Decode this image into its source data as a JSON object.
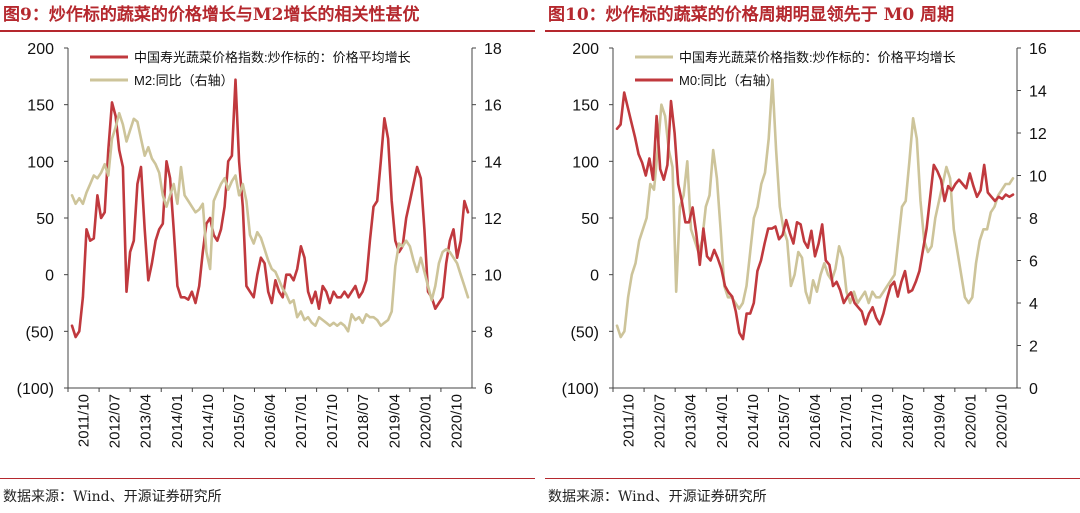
{
  "figures": [
    {
      "title": "图9：炒作标的蔬菜的价格增长与M2增长的相关性甚优",
      "source": "数据来源：Wind、开源证券研究所"
    },
    {
      "title": "图10：炒作标的蔬菜的价格周期明显领先于 M0 周期",
      "source": "数据来源：Wind、开源证券研究所"
    }
  ],
  "chart_data": [
    {
      "type": "line",
      "title": "图9：炒作标的蔬菜的价格增长与M2增长的相关性甚优",
      "x_tick_labels": [
        "2011/10",
        "2012/07",
        "2013/04",
        "2014/01",
        "2014/10",
        "2015/07",
        "2016/04",
        "2017/01",
        "2017/10",
        "2018/07",
        "2019/04",
        "2020/01",
        "2020/10"
      ],
      "y_left": {
        "ticks": [
          200,
          150,
          100,
          50,
          0,
          -50,
          -100
        ],
        "tick_labels": [
          "200",
          "150",
          "100",
          "50",
          "0",
          "(50)",
          "(100)"
        ],
        "ylim": [
          -100,
          200
        ]
      },
      "y_right": {
        "ticks": [
          18,
          16,
          14,
          12,
          10,
          8,
          6
        ],
        "tick_labels": [
          "18",
          "16",
          "14",
          "12",
          "10",
          "8",
          "6"
        ],
        "ylim": [
          6,
          18
        ]
      },
      "legend_position": "top",
      "series": [
        {
          "name": "中国寿光蔬菜价格指数:炒作标的：价格平均增长",
          "axis": "left",
          "color": "#c0393e",
          "values": [
            -45,
            -55,
            -50,
            -20,
            40,
            30,
            32,
            70,
            50,
            55,
            110,
            152,
            140,
            110,
            95,
            -15,
            20,
            30,
            80,
            95,
            40,
            -5,
            10,
            30,
            40,
            45,
            100,
            85,
            40,
            -10,
            -20,
            -20,
            -22,
            -15,
            -25,
            -10,
            20,
            45,
            50,
            35,
            30,
            40,
            60,
            100,
            105,
            172,
            100,
            60,
            -10,
            -15,
            -20,
            0,
            15,
            10,
            -15,
            -25,
            -5,
            -15,
            -20,
            0,
            0,
            -5,
            5,
            25,
            15,
            -15,
            -25,
            -15,
            -30,
            -10,
            -15,
            -25,
            -15,
            -20,
            -20,
            -15,
            -20,
            -15,
            -10,
            -20,
            -15,
            -5,
            30,
            60,
            65,
            100,
            138,
            120,
            65,
            30,
            20,
            25,
            50,
            65,
            80,
            95,
            85,
            40,
            -15,
            -20,
            -30,
            -25,
            -20,
            10,
            30,
            40,
            15,
            30,
            65,
            55
          ]
        },
        {
          "name": "M2:同比（右轴）",
          "axis": "right",
          "color": "#cdc49a",
          "values": [
            12.8,
            12.5,
            12.7,
            12.5,
            12.9,
            13.2,
            13.5,
            13.4,
            13.6,
            13.9,
            13.5,
            14.8,
            15.2,
            15.7,
            15.3,
            14.7,
            15.1,
            15.5,
            15.4,
            14.8,
            14.2,
            14.5,
            14.1,
            13.9,
            13.6,
            12.8,
            12.4,
            12.8,
            13.2,
            12.5,
            13.8,
            12.8,
            12.6,
            12.4,
            12.2,
            12.3,
            12.5,
            10.8,
            10.2,
            12.6,
            12.9,
            13.2,
            13.4,
            13.0,
            13.3,
            13.5,
            12.8,
            13.2,
            12.6,
            11.4,
            11.1,
            11.5,
            11.3,
            10.9,
            10.5,
            10.2,
            10.1,
            9.8,
            9.5,
            9.3,
            9.0,
            9.1,
            8.5,
            8.7,
            8.4,
            8.5,
            8.3,
            8.2,
            8.5,
            8.4,
            8.3,
            8.2,
            8.3,
            8.2,
            8.3,
            8.2,
            8.0,
            8.6,
            8.4,
            8.5,
            8.3,
            8.6,
            8.5,
            8.5,
            8.4,
            8.2,
            8.3,
            8.4,
            8.7,
            10.3,
            11.1,
            11.0,
            11.2,
            11.0,
            10.5,
            10.1,
            10.6,
            10.1,
            9.6,
            9.1,
            9.6,
            10.4,
            10.8,
            10.9,
            10.8,
            10.6,
            10.4,
            10.0,
            9.6,
            9.2
          ]
        }
      ]
    },
    {
      "type": "line",
      "title": "图10：炒作标的蔬菜的价格周期明显领先于 M0 周期",
      "x_tick_labels": [
        "2011/10",
        "2012/07",
        "2013/04",
        "2014/01",
        "2014/10",
        "2015/07",
        "2016/04",
        "2017/01",
        "2017/10",
        "2018/07",
        "2019/04",
        "2020/01",
        "2020/10"
      ],
      "y_left": {
        "ticks": [
          200,
          150,
          100,
          50,
          0,
          -50,
          -100
        ],
        "tick_labels": [
          "200",
          "150",
          "100",
          "50",
          "0",
          "(50)",
          "(100)"
        ],
        "ylim": [
          -100,
          200
        ]
      },
      "y_right": {
        "ticks": [
          16,
          14,
          12,
          10,
          8,
          6,
          4,
          2,
          0
        ],
        "tick_labels": [
          "16",
          "14",
          "12",
          "10",
          "8",
          "6",
          "4",
          "2",
          "0"
        ],
        "ylim": [
          0,
          16
        ]
      },
      "legend_position": "top",
      "series": [
        {
          "name": "中国寿光蔬菜价格指数:炒作标的：价格平均增长",
          "axis": "left",
          "color": "#cdc49a",
          "values": [
            -45,
            -55,
            -50,
            -20,
            0,
            10,
            30,
            40,
            50,
            80,
            75,
            110,
            150,
            140,
            110,
            95,
            -15,
            60,
            70,
            100,
            40,
            30,
            20,
            30,
            60,
            70,
            110,
            85,
            40,
            -10,
            -20,
            -20,
            -25,
            -30,
            -25,
            -10,
            20,
            50,
            60,
            80,
            90,
            120,
            172,
            110,
            60,
            40,
            30,
            -10,
            0,
            20,
            15,
            -15,
            -25,
            -5,
            -15,
            0,
            10,
            0,
            -5,
            5,
            25,
            15,
            -15,
            -25,
            -15,
            -25,
            -20,
            -15,
            -25,
            -15,
            -20,
            -20,
            -15,
            -10,
            -5,
            0,
            30,
            60,
            65,
            100,
            138,
            120,
            65,
            30,
            20,
            25,
            50,
            65,
            80,
            95,
            85,
            40,
            20,
            0,
            -20,
            -25,
            -20,
            10,
            30,
            40,
            40,
            55,
            60,
            70,
            75,
            80,
            80,
            85
          ]
        },
        {
          "name": "M0:同比（右轴）",
          "axis": "right",
          "color": "#c0393e",
          "values": [
            12.2,
            12.4,
            13.9,
            13.2,
            12.5,
            11.8,
            11.0,
            10.6,
            10.0,
            10.8,
            9.8,
            12.8,
            10.3,
            9.8,
            10.5,
            13.5,
            12.0,
            9.6,
            8.8,
            7.8,
            7.8,
            8.5,
            7.3,
            5.8,
            7.5,
            6.2,
            6.0,
            6.5,
            6.1,
            5.6,
            4.8,
            4.5,
            4.3,
            3.6,
            2.6,
            2.3,
            3.5,
            3.5,
            4.0,
            5.5,
            6.0,
            6.8,
            7.5,
            7.5,
            7.6,
            7.0,
            7.2,
            7.9,
            7.3,
            6.8,
            7.8,
            7.7,
            6.9,
            6.6,
            7.4,
            6.2,
            6.8,
            7.7,
            6.0,
            5.8,
            4.8,
            5.0,
            4.6,
            4.0,
            4.3,
            4.5,
            4.0,
            3.8,
            3.6,
            3.0,
            3.5,
            3.8,
            3.3,
            3.0,
            3.5,
            4.2,
            4.8,
            5.0,
            4.3,
            5.0,
            5.5,
            4.5,
            4.6,
            5.0,
            5.5,
            6.5,
            7.5,
            9.0,
            10.5,
            10.2,
            9.8,
            8.8,
            9.5,
            9.3,
            9.6,
            9.8,
            9.6,
            9.4,
            10.1,
            9.5,
            9.0,
            9.3,
            10.5,
            9.2,
            9.0,
            8.8,
            9.0,
            8.9,
            9.1,
            9.0,
            9.1
          ]
        }
      ]
    }
  ]
}
